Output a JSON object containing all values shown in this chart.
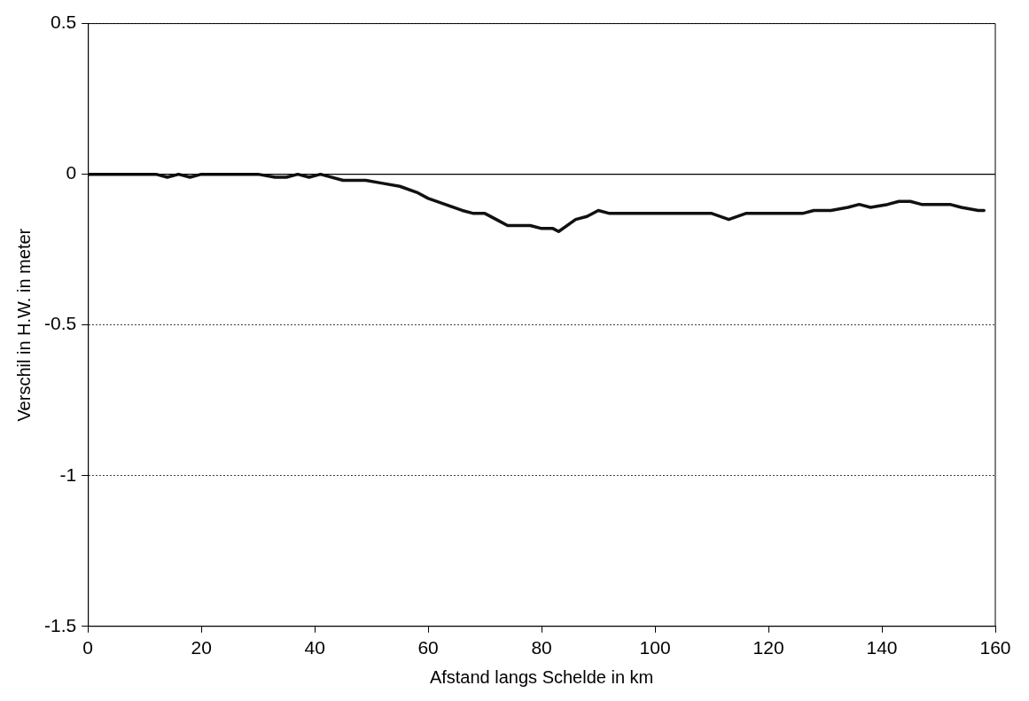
{
  "chart_data": {
    "type": "line",
    "xlabel": "Afstand langs Schelde in km",
    "ylabel": "Verschil in H.W. in meter",
    "xlim": [
      0,
      160
    ],
    "xticks": [
      0,
      20,
      40,
      60,
      80,
      100,
      120,
      140,
      160
    ],
    "ylim": [
      -1.5,
      0.5
    ],
    "yticks": [
      -1.5,
      -1,
      -0.5,
      0,
      0.5
    ],
    "grid": "y",
    "line_style": "solid",
    "legend": false,
    "ref_lines": [
      {
        "axis": "y",
        "value": 0,
        "color": "#000000",
        "line_style": "solid"
      }
    ],
    "series": [
      {
        "color": "#111111",
        "x": [
          0,
          12,
          14,
          16,
          18,
          20,
          30,
          33,
          35,
          37,
          39,
          41,
          45,
          49,
          52,
          55,
          58,
          60,
          63,
          66,
          68,
          70,
          72,
          74,
          78,
          80,
          82,
          83,
          86,
          88,
          90,
          92,
          110,
          113,
          116,
          126,
          128,
          131,
          134,
          136,
          138,
          141,
          143,
          145,
          147,
          152,
          154,
          157,
          158
        ],
        "values": [
          0,
          0,
          -0.01,
          0,
          -0.01,
          0,
          0,
          -0.01,
          -0.01,
          0,
          -0.01,
          0,
          -0.02,
          -0.02,
          -0.03,
          -0.04,
          -0.06,
          -0.08,
          -0.1,
          -0.12,
          -0.13,
          -0.13,
          -0.15,
          -0.17,
          -0.17,
          -0.18,
          -0.18,
          -0.19,
          -0.15,
          -0.14,
          -0.12,
          -0.13,
          -0.13,
          -0.15,
          -0.13,
          -0.13,
          -0.12,
          -0.12,
          -0.11,
          -0.1,
          -0.11,
          -0.1,
          -0.09,
          -0.09,
          -0.1,
          -0.1,
          -0.11,
          -0.12,
          -0.12
        ]
      }
    ]
  }
}
